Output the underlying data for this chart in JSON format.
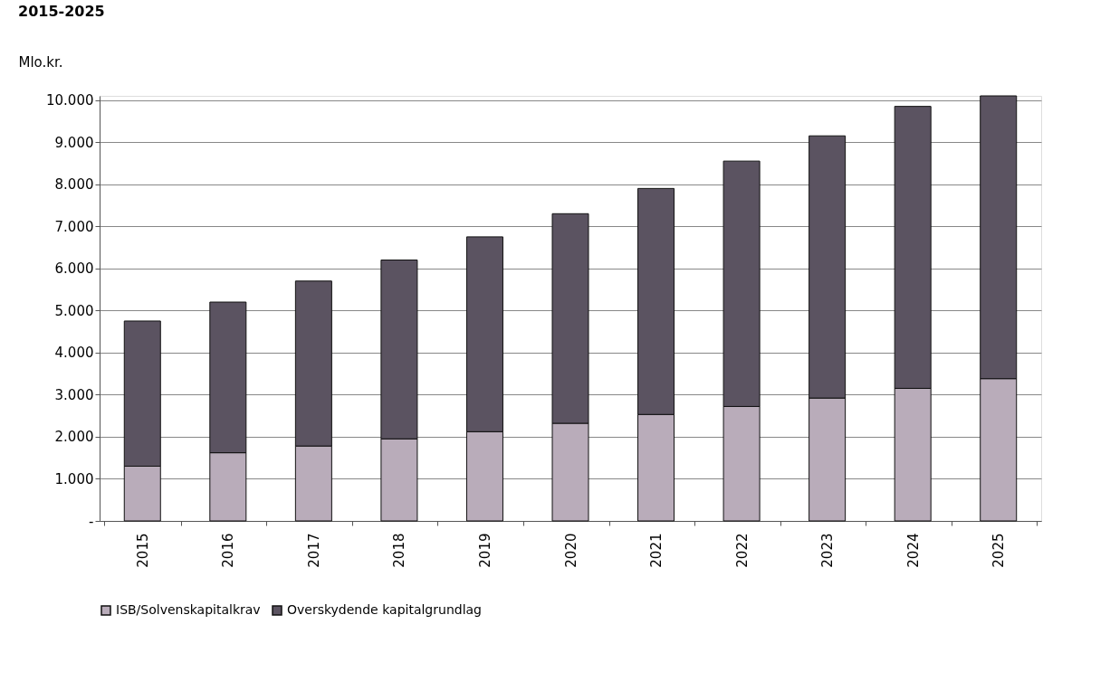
{
  "chart_data": {
    "type": "bar",
    "title": "2015-2025",
    "ylabel": "Mlo.kr.",
    "stacked": true,
    "categories": [
      "2015",
      "2016",
      "2017",
      "2018",
      "2019",
      "2020",
      "2021",
      "2022",
      "2023",
      "2024",
      "2025"
    ],
    "series": [
      {
        "name": "ISB/Solvenskapitalkrav",
        "color": "#b9acba",
        "values": [
          1300,
          1620,
          1780,
          1950,
          2120,
          2320,
          2530,
          2720,
          2920,
          3150,
          3380
        ]
      },
      {
        "name": "Overskydende kapitalgrundlag",
        "color": "#5b5361",
        "values": [
          3450,
          3580,
          3920,
          4250,
          4630,
          4980,
          5370,
          5830,
          6230,
          6700,
          6720
        ]
      }
    ],
    "ylim": [
      0,
      10100
    ],
    "yticks": [
      {
        "value": 0,
        "label": "-"
      },
      {
        "value": 1000,
        "label": "1.000"
      },
      {
        "value": 2000,
        "label": "2.000"
      },
      {
        "value": 3000,
        "label": "3.000"
      },
      {
        "value": 4000,
        "label": "4.000"
      },
      {
        "value": 5000,
        "label": "5.000"
      },
      {
        "value": 6000,
        "label": "6.000"
      },
      {
        "value": 7000,
        "label": "7.000"
      },
      {
        "value": 8000,
        "label": "8.000"
      },
      {
        "value": 9000,
        "label": "9.000"
      },
      {
        "value": 10000,
        "label": "10.000"
      }
    ],
    "grid": "y",
    "legend": "bottom"
  }
}
